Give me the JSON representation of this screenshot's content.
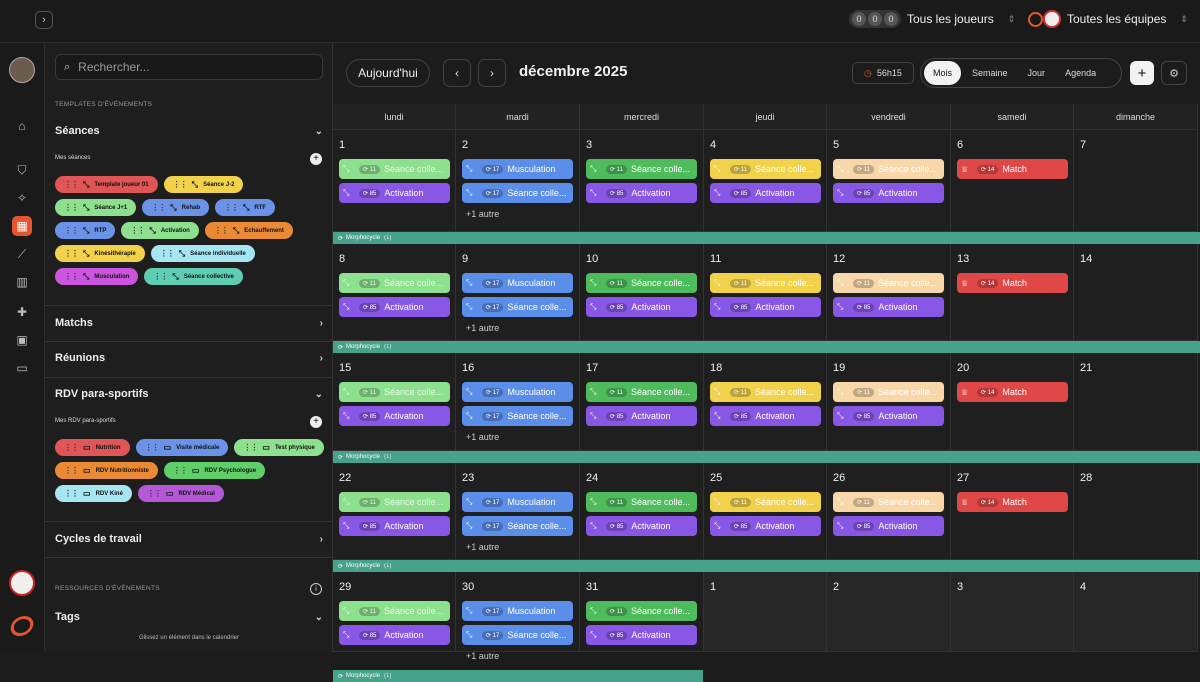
{
  "topbar": {
    "players_label": "Tous les joueurs",
    "teams_label": "Toutes les équipes",
    "player_avatars": [
      "0",
      "0",
      "0"
    ]
  },
  "sidebar": {
    "search_placeholder": "Rechercher...",
    "templates_header": "TEMPLATES D'ÉVÉNEMENTS",
    "seances": {
      "title": "Séances",
      "sub": "Mes séances",
      "chips": [
        {
          "label": "Template joueur 01",
          "color": "#e05555"
        },
        {
          "label": "Séance J-2",
          "color": "#f2d24b"
        },
        {
          "label": "Séance J+1",
          "color": "#8de08d"
        },
        {
          "label": "Rehab",
          "color": "#6a93e8"
        },
        {
          "label": "RTF",
          "color": "#6a93e8"
        },
        {
          "label": "RTP",
          "color": "#6a93e8"
        },
        {
          "label": "Activation",
          "color": "#8de08d"
        },
        {
          "label": "Echauffement",
          "color": "#ea8a34"
        },
        {
          "label": "Kinésithérapie",
          "color": "#f2d24b"
        },
        {
          "label": "Séance individuelle",
          "color": "#a6e6f2"
        },
        {
          "label": "Musculation",
          "color": "#cc55e0"
        },
        {
          "label": "Séance collective",
          "color": "#5fcdb4"
        }
      ]
    },
    "matchs": "Matchs",
    "reunions": "Réunions",
    "rdv": {
      "title": "RDV para-sportifs",
      "sub": "Mes RDV para-sportifs",
      "chips": [
        {
          "label": "Nutrition",
          "color": "#e05555"
        },
        {
          "label": "Visite médicale",
          "color": "#6a93e8"
        },
        {
          "label": "Test physique",
          "color": "#8de08d"
        },
        {
          "label": "RDV Nutritionniste",
          "color": "#ea8a34"
        },
        {
          "label": "RDV Psychologue",
          "color": "#5fcf6a"
        },
        {
          "label": "RDV Kiné",
          "color": "#a6e6f2"
        },
        {
          "label": "RDV Médical",
          "color": "#b458d8"
        }
      ]
    },
    "cycles": "Cycles de travail",
    "resources_header": "RESSOURCES D'ÉVÉNEMENTS",
    "tags": "Tags",
    "hint": "Glissez un élément dans le calendrier"
  },
  "toolbar": {
    "today": "Aujourd'hui",
    "month": "décembre 2025",
    "timer": "56h15",
    "views": [
      "Mois",
      "Semaine",
      "Jour",
      "Agenda"
    ],
    "active_view": "Mois"
  },
  "calendar": {
    "days": [
      "lundi",
      "mardi",
      "mercredi",
      "jeudi",
      "vendredi",
      "samedi",
      "dimanche"
    ],
    "band_label": "Morphocycle",
    "band_count": "(1)",
    "more_label": "+1 autre",
    "weeks": [
      [
        "1",
        "2",
        "3",
        "4",
        "5",
        "6",
        "7"
      ],
      [
        "8",
        "9",
        "10",
        "11",
        "12",
        "13",
        "14"
      ],
      [
        "15",
        "16",
        "17",
        "18",
        "19",
        "20",
        "21"
      ],
      [
        "22",
        "23",
        "24",
        "25",
        "26",
        "27",
        "28"
      ],
      [
        "29",
        "30",
        "31",
        "1",
        "2",
        "3",
        "4"
      ]
    ],
    "col_events": [
      [
        {
          "label": "Séance colle...",
          "color": "#8de08d",
          "fg": "#eafbe9",
          "badge": "11"
        },
        {
          "label": "Activation",
          "color": "#8957e5",
          "fg": "#fff",
          "badge": "85"
        }
      ],
      [
        {
          "label": "Musculation",
          "color": "#5b8ee8",
          "fg": "#fff",
          "badge": "17"
        },
        {
          "label": "Séance colle...",
          "color": "#5b8ee8",
          "fg": "#fff",
          "badge": "17"
        }
      ],
      [
        {
          "label": "Séance colle...",
          "color": "#4ebc5c",
          "fg": "#fff",
          "badge": "11"
        },
        {
          "label": "Activation",
          "color": "#8957e5",
          "fg": "#fff",
          "badge": "85"
        }
      ],
      [
        {
          "label": "Séance colle...",
          "color": "#f2d24b",
          "fg": "#fff",
          "badge": "11"
        },
        {
          "label": "Activation",
          "color": "#8957e5",
          "fg": "#fff",
          "badge": "85"
        }
      ],
      [
        {
          "label": "Séance colle...",
          "color": "#f8d8a8",
          "fg": "#fff",
          "badge": "11"
        },
        {
          "label": "Activation",
          "color": "#8957e5",
          "fg": "#fff",
          "badge": "85"
        }
      ],
      [
        {
          "label": "Match",
          "color": "#e04848",
          "fg": "#fff",
          "badge": "14"
        }
      ],
      []
    ]
  },
  "colors": {
    "accent": "#e4572e",
    "band": "#46a28a"
  }
}
